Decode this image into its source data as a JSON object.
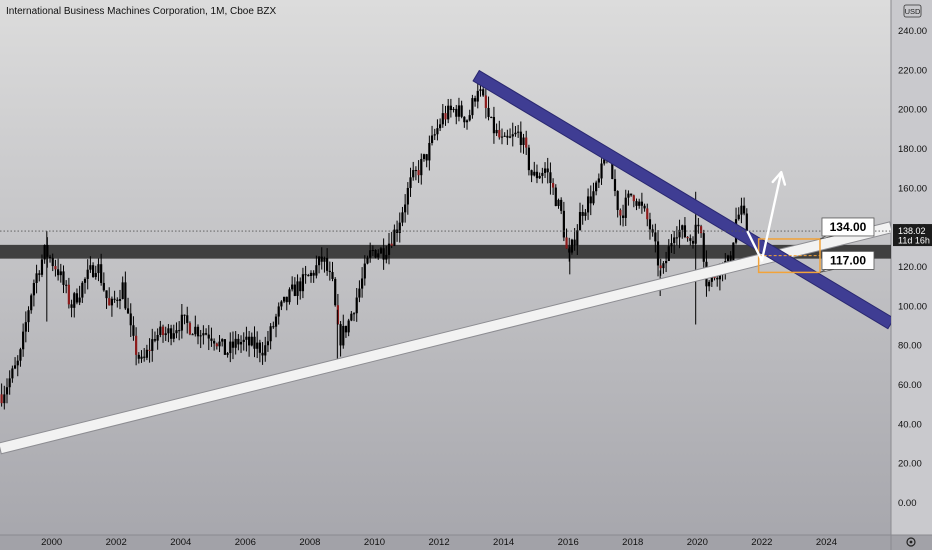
{
  "header": {
    "title": "International Business Machines Corporation, 1M, Cboe BZX"
  },
  "currency_badge": "USD",
  "colors": {
    "bg_top": "#dcdcdc",
    "bg_bottom": "#a6a6ac",
    "candle": "#000000",
    "candle_red": "#8c1a1a",
    "resistance_line": "#3f3d93",
    "support_line": "#f2f2f2",
    "zone": "#2d2d2d",
    "target_box": "#f2a33a",
    "arrow": "#ffffff",
    "last_badge": "#1c1c1c"
  },
  "chart_data": {
    "type": "candlestick",
    "symbol": "IBM",
    "interval": "1M",
    "exchange": "Cboe BZX",
    "x_range": [
      1998.4,
      2026.0
    ],
    "ylim": [
      -10,
      250
    ],
    "grid": false,
    "y_ticks": [
      "240.00",
      "220.00",
      "200.00",
      "180.00",
      "160.00",
      "140.00",
      "120.00",
      "100.00",
      "80.00",
      "60.00",
      "40.00",
      "20.00",
      "0.00"
    ],
    "x_ticks": [
      "2000",
      "2002",
      "2004",
      "2006",
      "2008",
      "2010",
      "2012",
      "2014",
      "2016",
      "2018",
      "2020",
      "2022",
      "2024"
    ],
    "last_price": {
      "value": "138.02",
      "countdown": "11d 16h"
    },
    "price_path": [
      [
        1998.45,
        55
      ],
      [
        1999.0,
        72
      ],
      [
        1999.4,
        110
      ],
      [
        1999.8,
        128
      ],
      [
        2000.2,
        118
      ],
      [
        2000.6,
        100
      ],
      [
        2001.0,
        112
      ],
      [
        2001.4,
        122
      ],
      [
        2001.8,
        98
      ],
      [
        2002.2,
        110
      ],
      [
        2002.5,
        82
      ],
      [
        2002.8,
        70
      ],
      [
        2003.2,
        85
      ],
      [
        2003.6,
        86
      ],
      [
        2004.0,
        92
      ],
      [
        2004.5,
        88
      ],
      [
        2005.0,
        85
      ],
      [
        2005.4,
        76
      ],
      [
        2005.8,
        82
      ],
      [
        2006.2,
        80
      ],
      [
        2006.6,
        78
      ],
      [
        2007.0,
        96
      ],
      [
        2007.5,
        108
      ],
      [
        2008.0,
        115
      ],
      [
        2008.4,
        124
      ],
      [
        2008.7,
        110
      ],
      [
        2008.9,
        82
      ],
      [
        2009.2,
        92
      ],
      [
        2009.6,
        112
      ],
      [
        2009.9,
        128
      ],
      [
        2010.3,
        128
      ],
      [
        2010.7,
        140
      ],
      [
        2011.1,
        162
      ],
      [
        2011.6,
        176
      ],
      [
        2012.1,
        196
      ],
      [
        2012.5,
        200
      ],
      [
        2012.9,
        195
      ],
      [
        2013.2,
        212
      ],
      [
        2013.6,
        192
      ],
      [
        2014.0,
        182
      ],
      [
        2014.5,
        188
      ],
      [
        2014.9,
        165
      ],
      [
        2015.3,
        170
      ],
      [
        2015.8,
        146
      ],
      [
        2016.0,
        122
      ],
      [
        2016.4,
        148
      ],
      [
        2016.9,
        160
      ],
      [
        2017.2,
        178
      ],
      [
        2017.6,
        146
      ],
      [
        2018.0,
        158
      ],
      [
        2018.5,
        142
      ],
      [
        2018.9,
        115
      ],
      [
        2019.3,
        140
      ],
      [
        2019.8,
        134
      ],
      [
        2020.1,
        143
      ],
      [
        2020.3,
        110
      ],
      [
        2020.7,
        120
      ],
      [
        2021.0,
        122
      ],
      [
        2021.2,
        144
      ],
      [
        2021.35,
        148
      ],
      [
        2021.55,
        138
      ]
    ],
    "wicks": [
      {
        "date": 1999.85,
        "low": 92,
        "high": 138
      },
      {
        "date": 2008.85,
        "low": 69.5,
        "high": 98
      },
      {
        "date": 2019.95,
        "low": 90.5,
        "high": 158
      },
      {
        "date": 2018.85,
        "low": 105,
        "high": 118
      },
      {
        "date": 2016.05,
        "low": 116,
        "high": 130
      }
    ],
    "annotations": {
      "horizontal_zone": {
        "from": 124,
        "to": 131
      },
      "support_line": {
        "from": [
          1998.4,
          27.5
        ],
        "to": [
          2026.0,
          140
        ]
      },
      "resistance_line": {
        "from": [
          2013.15,
          217
        ],
        "to": [
          2026.0,
          91
        ]
      },
      "target_box": {
        "x_from": 2021.9,
        "x_to": 2023.8,
        "y_from": 117,
        "y_to": 134
      },
      "arrow_path": [
        [
          2021.55,
          138
        ],
        [
          2022.0,
          123
        ],
        [
          2022.6,
          168
        ]
      ],
      "price_labels": [
        "134.00",
        "117.00"
      ]
    }
  }
}
